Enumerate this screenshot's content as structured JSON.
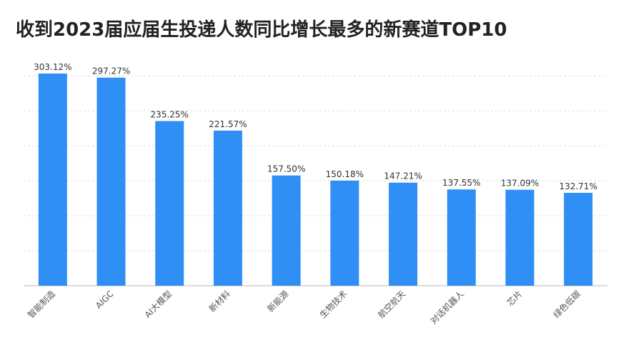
{
  "chart_data": {
    "type": "bar",
    "title": "收到2023届应届生投递人数同比增长最多的新赛道TOP10",
    "categories": [
      "智能制造",
      "AIGC",
      "AI大模型",
      "新材料",
      "新能源",
      "生物技术",
      "航空航天",
      "对话机器人",
      "芯片",
      "绿色低碳"
    ],
    "values": [
      303.12,
      297.27,
      235.25,
      221.57,
      157.5,
      150.18,
      147.21,
      137.55,
      137.09,
      132.71
    ],
    "value_labels": [
      "303.12%",
      "297.27%",
      "235.25%",
      "221.57%",
      "157.50%",
      "150.18%",
      "147.21%",
      "137.55%",
      "137.09%",
      "132.71%"
    ],
    "color": "#2f8ff5",
    "ylim": [
      0,
      320
    ],
    "yticks": [
      0,
      50,
      100,
      150,
      200,
      250,
      300
    ],
    "grid": true
  }
}
